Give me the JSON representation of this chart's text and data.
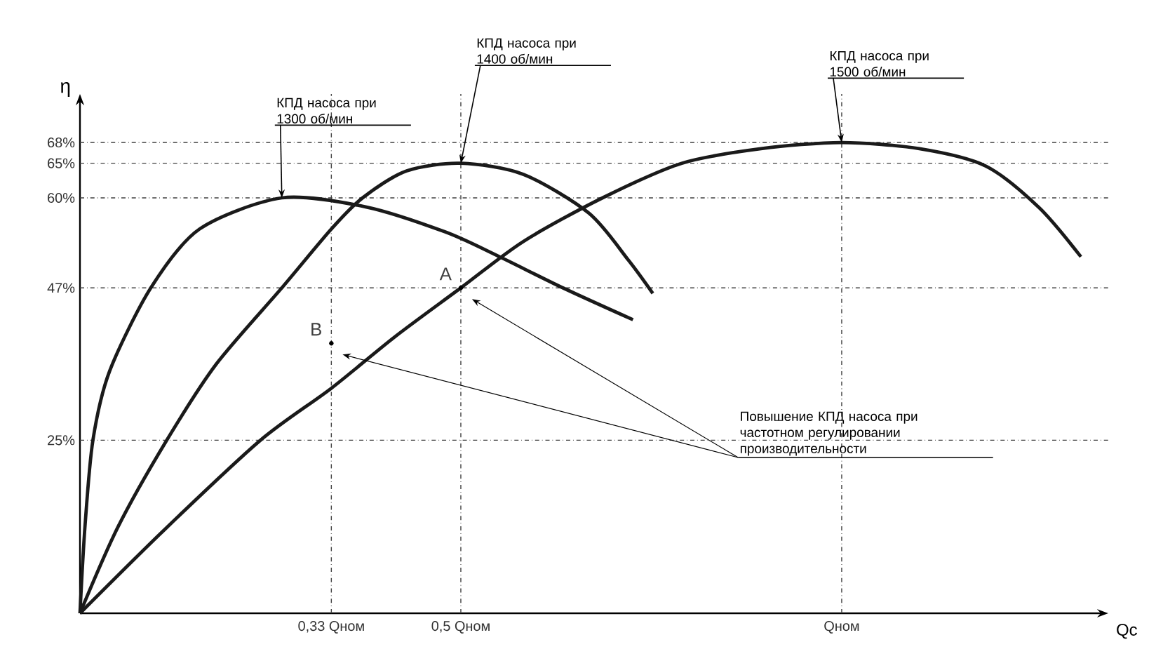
{
  "chart_data": {
    "type": "line",
    "xlabel": "Qc",
    "ylabel": "η",
    "xlim": [
      0,
      1.35
    ],
    "ylim": [
      0,
      75
    ],
    "xticks": [
      {
        "value": 0.33,
        "label": "0,33 Qном"
      },
      {
        "value": 0.5,
        "label": "0,5 Qном"
      },
      {
        "value": 1.0,
        "label": "Qном"
      }
    ],
    "yticks": [
      {
        "value": 25,
        "label": "25%"
      },
      {
        "value": 47,
        "label": "47%"
      },
      {
        "value": 60,
        "label": "60%"
      },
      {
        "value": 65,
        "label": "65%"
      },
      {
        "value": 68,
        "label": "68%"
      }
    ],
    "series": [
      {
        "name": "КПД насоса при 1300 об/мин",
        "color": "#1a1a1a",
        "x": [
          0,
          0.0065,
          0.017,
          0.039,
          0.093,
          0.157,
          0.265,
          0.375,
          0.479,
          0.547,
          0.634,
          0.726
        ],
        "values": [
          0,
          12.4,
          25,
          35.0,
          47,
          55.5,
          60,
          58.7,
          55.1,
          51.7,
          47,
          42.4
        ]
      },
      {
        "name": "КПД насоса при 1400 об/мин",
        "color": "#1a1a1a",
        "x": [
          0,
          0.0496,
          0.114,
          0.179,
          0.265,
          0.33,
          0.371,
          0.429,
          0.5,
          0.582,
          0.668,
          0.72,
          0.752
        ],
        "values": [
          0,
          12.4,
          25,
          36.0,
          47,
          55.5,
          60,
          63.9,
          65,
          63.4,
          57.8,
          51.0,
          46.2
        ]
      },
      {
        "name": "КПД насоса при 1500 об/мин",
        "color": "#1a1a1a",
        "x": [
          0,
          0.114,
          0.237,
          0.33,
          0.413,
          0.5,
          0.582,
          0.686,
          0.79,
          0.894,
          1.0,
          1.102,
          1.189,
          1.259,
          1.314
        ],
        "values": [
          0,
          12.4,
          25,
          32.5,
          39.9,
          47,
          53.7,
          60,
          65,
          67.1,
          68,
          67.1,
          64.6,
          58.6,
          51.5
        ]
      }
    ],
    "ref_lines": [
      {
        "axis": "y",
        "value": 68,
        "line_style": "dashed"
      },
      {
        "axis": "y",
        "value": 65,
        "line_style": "dashed"
      },
      {
        "axis": "y",
        "value": 60,
        "line_style": "dashed"
      },
      {
        "axis": "y",
        "value": 47,
        "line_style": "dashed"
      },
      {
        "axis": "y",
        "value": 25,
        "line_style": "dashed"
      },
      {
        "axis": "x",
        "value": 0.33,
        "line_style": "dashed"
      },
      {
        "axis": "x",
        "value": 0.5,
        "line_style": "dashed"
      },
      {
        "axis": "x",
        "value": 1.0,
        "line_style": "dashed"
      }
    ],
    "annotations": [
      {
        "text": "A",
        "x": 0.5,
        "y": 47
      },
      {
        "text": "B",
        "x": 0.33,
        "y": 39
      },
      "Повышение КПД насоса при частотном регулировании производительности"
    ],
    "line_style": "solid",
    "marker": "none"
  }
}
